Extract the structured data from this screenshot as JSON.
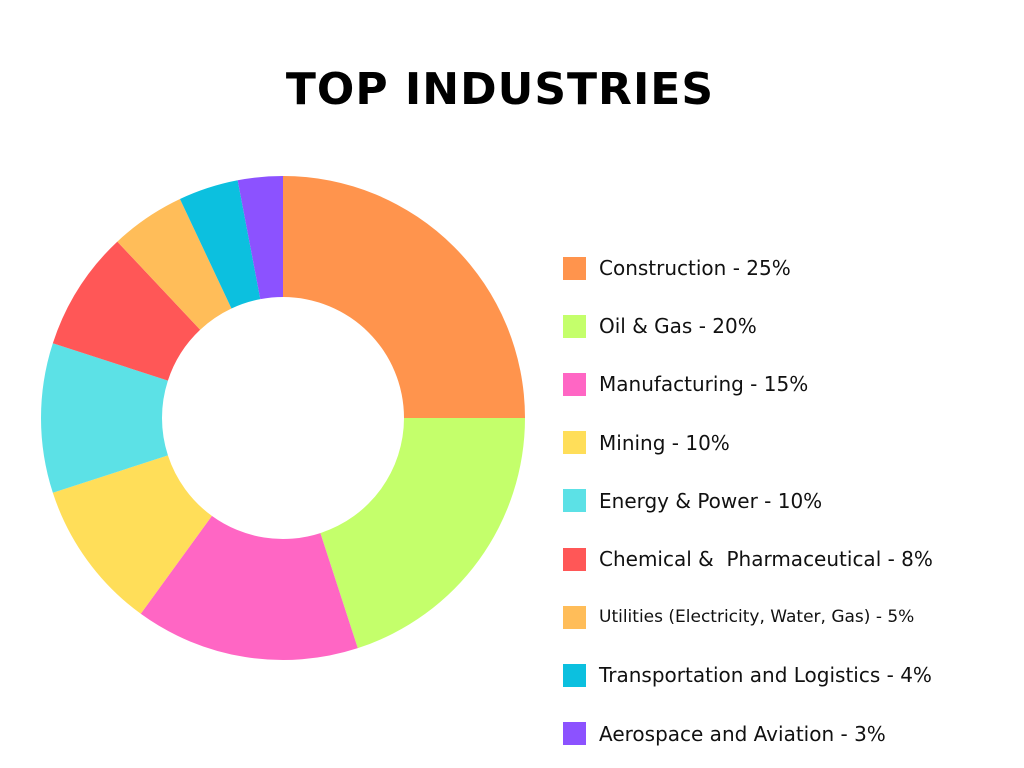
{
  "chart_data": {
    "type": "pie",
    "style": "donut",
    "title": "TOP INDUSTRIES",
    "legend_position": "right",
    "slices": [
      {
        "label": "Construction - 25%",
        "value": 25,
        "color": "#FF944D"
      },
      {
        "label": "Oil & Gas - 20%",
        "value": 20,
        "color": "#C4FF6B"
      },
      {
        "label": "Manufacturing - 15%",
        "value": 15,
        "color": "#FF66C4"
      },
      {
        "label": "Mining - 10%",
        "value": 10,
        "color": "#FFDE59"
      },
      {
        "label": "Energy & Power - 10%",
        "value": 10,
        "color": "#5CE1E6"
      },
      {
        "label": "Chemical &  Pharmaceutical - 8%",
        "value": 8,
        "color": "#FF5757"
      },
      {
        "label": "Utilities (Electricity, Water, Gas) - 5%",
        "value": 5,
        "color": "#FFBD59"
      },
      {
        "label": "Transportation and Logistics - 4%",
        "value": 4,
        "color": "#0CC0DF"
      },
      {
        "label": "Aerospace and Aviation - 3%",
        "value": 3,
        "color": "#8C52FF"
      }
    ]
  }
}
